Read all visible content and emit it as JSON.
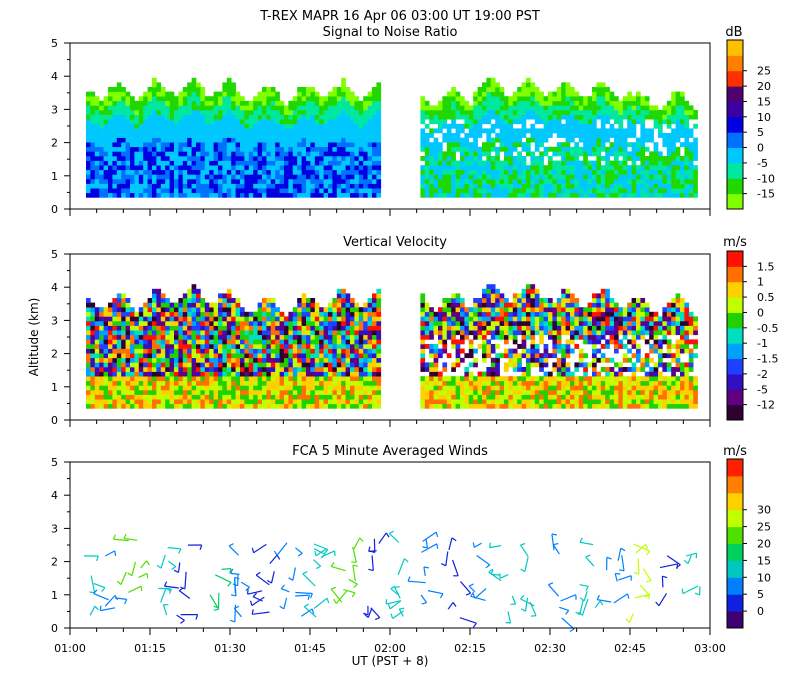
{
  "chart_data": {
    "type": "heatmap",
    "title": "T-REX  MAPR 16 Apr 06  03:00 UT  19:00  PST",
    "xlabel": "UT  (PST + 8)",
    "x_ticks": [
      "01:00",
      "01:15",
      "01:30",
      "01:45",
      "02:00",
      "02:15",
      "02:30",
      "02:45",
      "03:00"
    ],
    "x_range_minutes": [
      0,
      120
    ],
    "data_gap_minutes": [
      -2,
      5
    ],
    "panels": [
      {
        "id": "snr",
        "type": "heatmap",
        "title": "Signal to Noise Ratio",
        "ylabel": "",
        "y_range_km": [
          0,
          5
        ],
        "y_ticks": [
          "0",
          "1",
          "2",
          "3",
          "4",
          "5"
        ],
        "colorbar_unit": "dB",
        "colorbar_labels": [
          "-15",
          "-10",
          "-5",
          "0",
          "5",
          "10",
          "15",
          "20",
          "25"
        ],
        "colors": [
          "#80ff00",
          "#20d800",
          "#00e8a0",
          "#00c8ff",
          "#0070ff",
          "#0000e0",
          "#3a00a0",
          "#500070",
          "#ff3000",
          "#ff8000",
          "#ffc000"
        ],
        "echo_top_km": [
          3.5,
          3.6,
          3.4,
          3.5,
          3.3,
          3.6,
          3.5,
          3.2
        ]
      },
      {
        "id": "velocity",
        "type": "heatmap",
        "title": "Vertical Velocity",
        "ylabel": "Altitude (km)",
        "y_range_km": [
          0,
          5
        ],
        "y_ticks": [
          "0",
          "1",
          "2",
          "3",
          "4",
          "5"
        ],
        "colorbar_unit": "m/s",
        "colorbar_labels": [
          "-12",
          "-5",
          "-2",
          "-1.5",
          "-1",
          "-0.5",
          "0",
          "0.5",
          "1",
          "1.5"
        ],
        "colors": [
          "#300030",
          "#600080",
          "#3010c0",
          "#2040ff",
          "#00a0ff",
          "#00e0c0",
          "#20d000",
          "#c0ff00",
          "#ffd000",
          "#ff7000",
          "#ff1000"
        ],
        "echo_top_km": [
          3.5,
          3.7,
          3.4,
          3.6,
          3.5,
          3.8,
          3.6,
          3.4
        ]
      },
      {
        "id": "winds",
        "type": "scatter",
        "title": "FCA 5 Minute Averaged Winds",
        "ylabel": "",
        "y_range_km": [
          0,
          5
        ],
        "y_ticks": [
          "0",
          "1",
          "2",
          "3",
          "4",
          "5"
        ],
        "colorbar_unit": "m/s",
        "colorbar_labels": [
          "0",
          "5",
          "10",
          "15",
          "20",
          "25",
          "30"
        ],
        "colors": [
          "#400070",
          "#1020e0",
          "#0080ff",
          "#00c8c0",
          "#00d060",
          "#50e000",
          "#c0ff00",
          "#ffd000",
          "#ff8000",
          "#ff2000"
        ],
        "profile_times_minutes": [
          3,
          7,
          12,
          17,
          21,
          27,
          32,
          37,
          42,
          47,
          52,
          57,
          62,
          67,
          72,
          77,
          82,
          87,
          92,
          97,
          102,
          107,
          112,
          117
        ],
        "wind_speed_ms": [
          12,
          8,
          18,
          10,
          6,
          14,
          9,
          5,
          7,
          11,
          19,
          6,
          13,
          8,
          5,
          7,
          10,
          12,
          9,
          11,
          8,
          21,
          6,
          13
        ]
      }
    ]
  }
}
